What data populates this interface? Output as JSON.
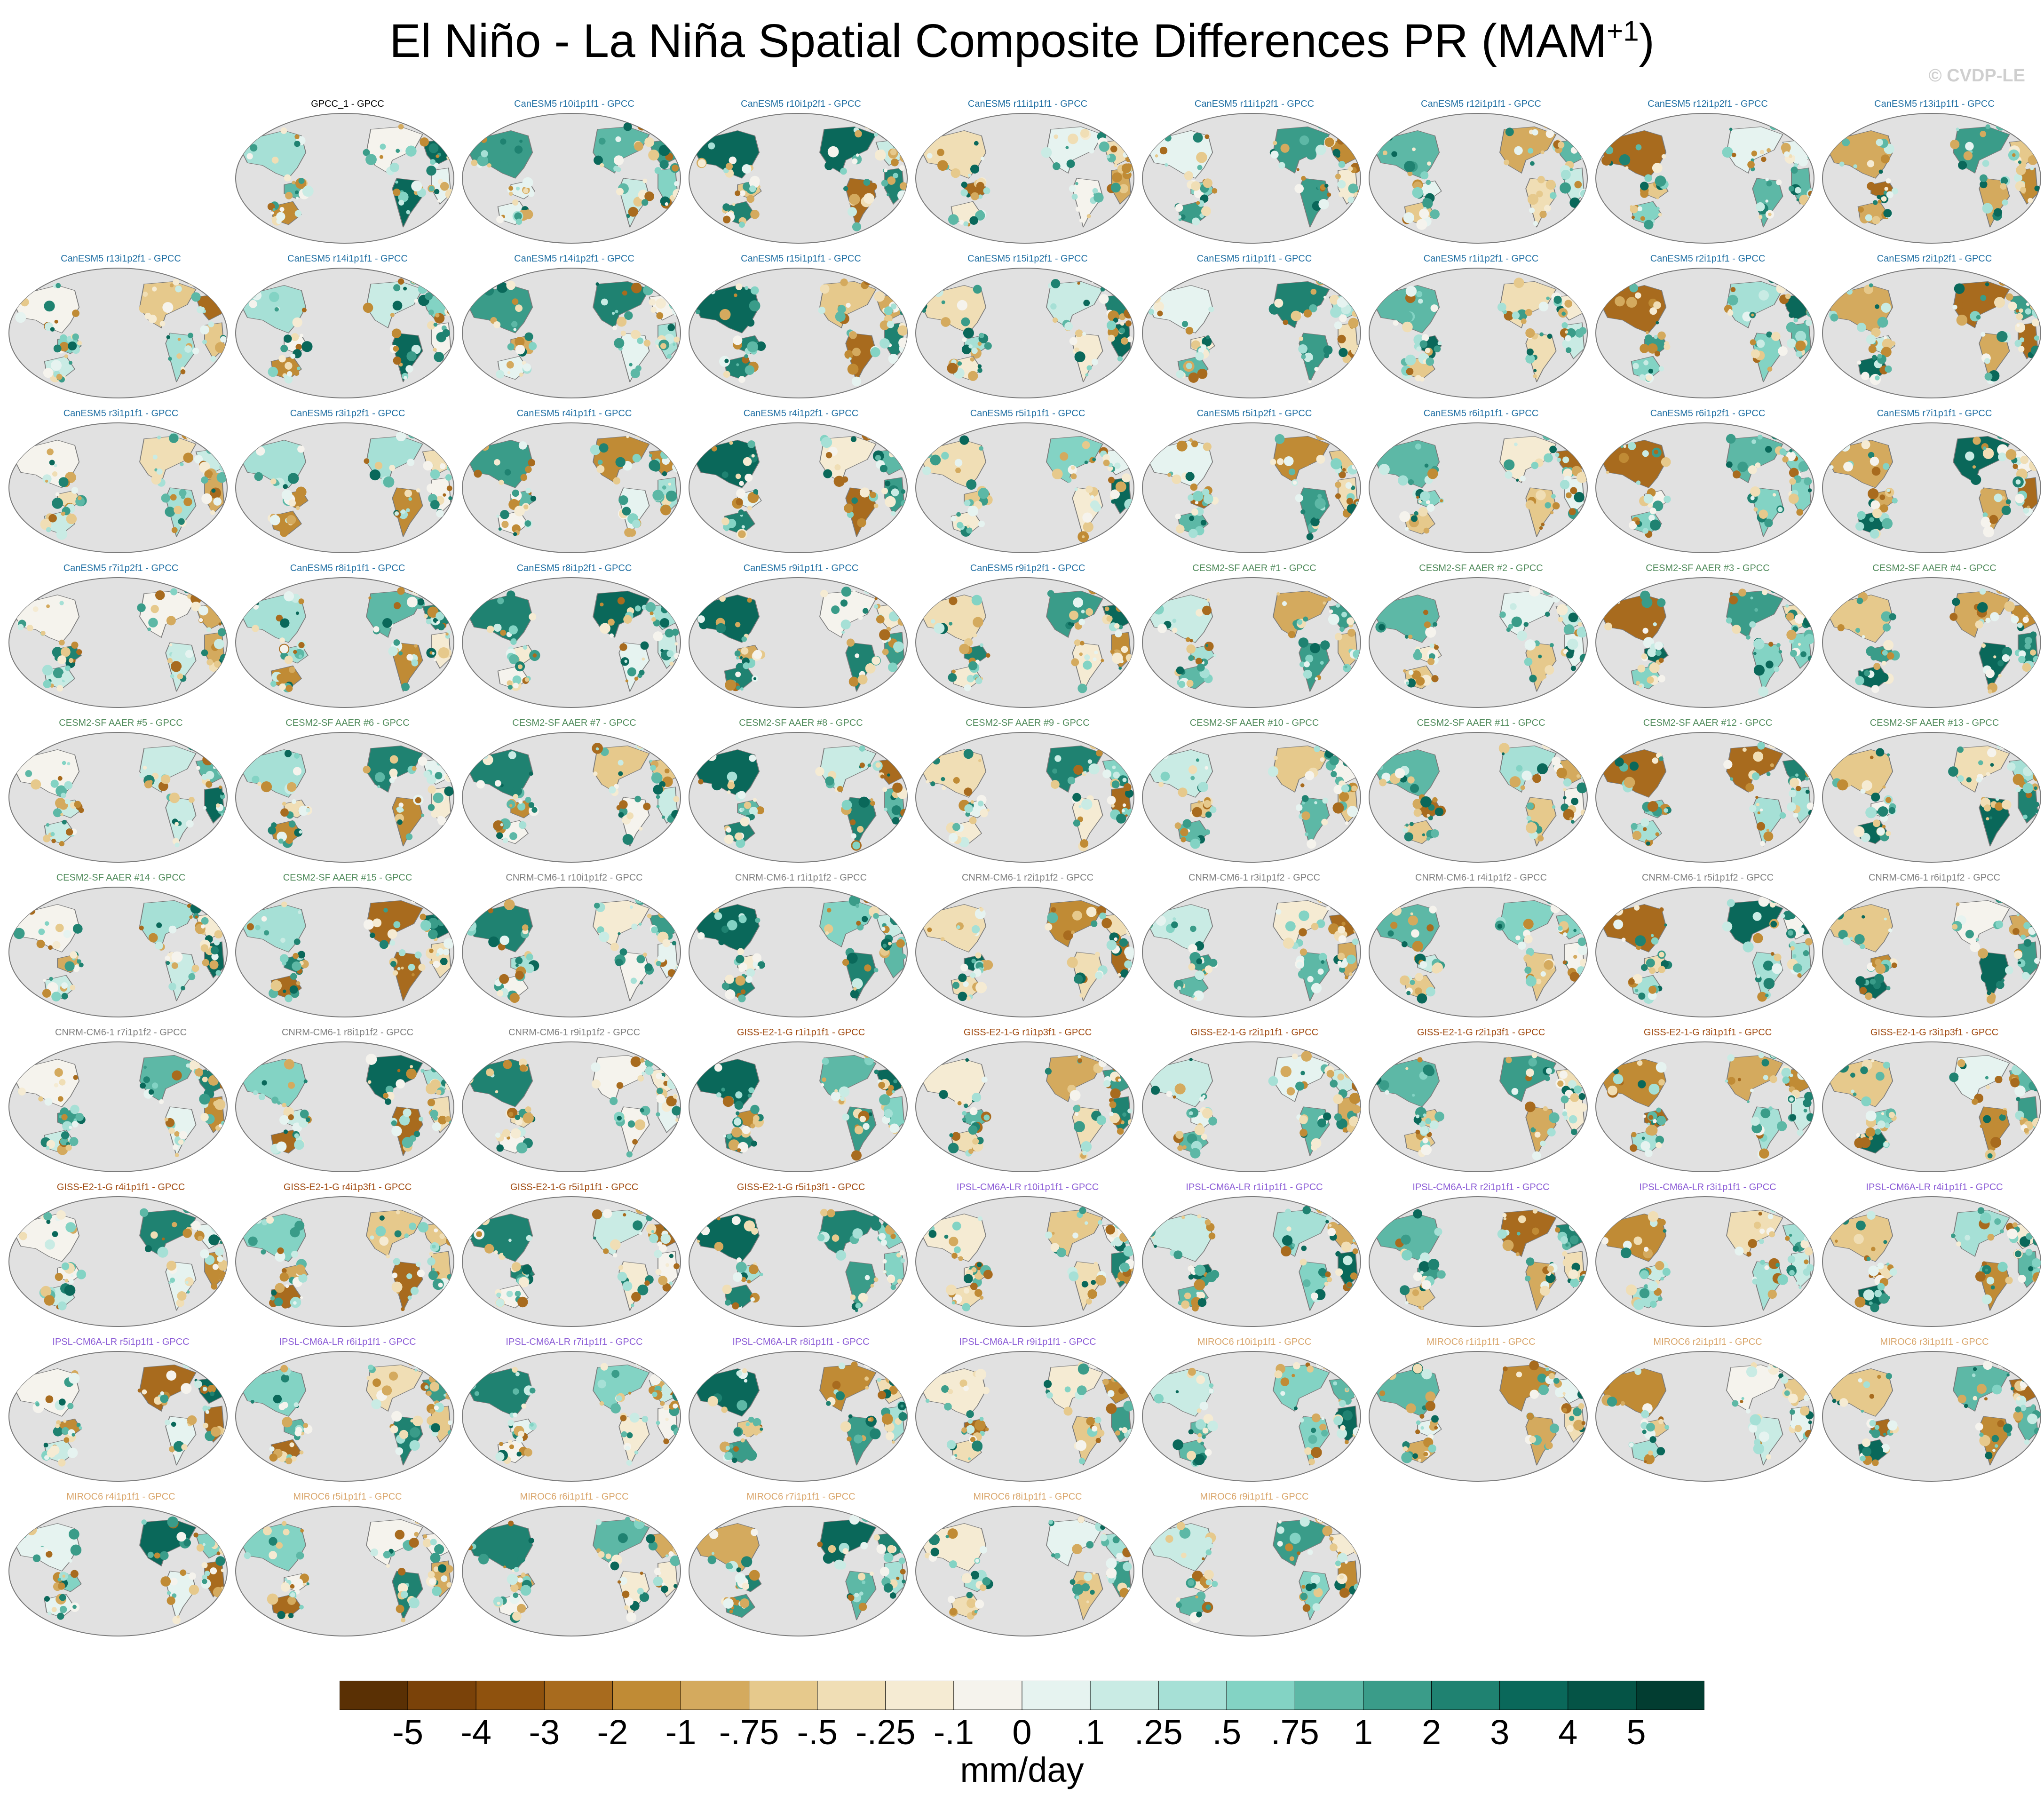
{
  "title": "El Niño - La Niña Spatial Composite Differences PR (MAM",
  "title_sup": "+1",
  "title_close": ")",
  "copyright": "© CVDP-LE",
  "units": "mm/day",
  "colors": {
    "ocean": "#e1e1e1",
    "coast": "#7a7a7a",
    "CanESM5": "#1f6fa3",
    "CESM2-SF AAER": "#4f8a5a",
    "CNRM-CM6-1": "#7f7f7f",
    "GISS-E2-1-G": "#a04a10",
    "IPSL-CM6A-LR": "#8b5bd6",
    "MIROC6": "#d9a56a",
    "obs": "#000000"
  },
  "colorbar": {
    "labels": [
      "-5",
      "-4",
      "-3",
      "-2",
      "-1",
      "-.75",
      "-.5",
      "-.25",
      "-.1",
      "0",
      ".1",
      ".25",
      ".5",
      ".75",
      "1",
      "2",
      "3",
      "4",
      "5"
    ],
    "colors": [
      "#5a3004",
      "#7a4209",
      "#8f520e",
      "#a86b1e",
      "#c08b35",
      "#d4aa5e",
      "#e6c98c",
      "#f0deb5",
      "#f5ebd3",
      "#f5f3ed",
      "#e6f3f0",
      "#c9ebe4",
      "#a6e0d6",
      "#83d3c4",
      "#5db8a6",
      "#3a9c89",
      "#1f8271",
      "#0a685a",
      "#055446",
      "#023d31"
    ]
  },
  "panels": [
    {
      "label": "GPCC_1 - GPCC",
      "model": "obs"
    },
    {
      "label": "CanESM5 r10i1p1f1 - GPCC",
      "model": "CanESM5"
    },
    {
      "label": "CanESM5 r10i1p2f1 - GPCC",
      "model": "CanESM5"
    },
    {
      "label": "CanESM5 r11i1p1f1 - GPCC",
      "model": "CanESM5"
    },
    {
      "label": "CanESM5 r11i1p2f1 - GPCC",
      "model": "CanESM5"
    },
    {
      "label": "CanESM5 r12i1p1f1 - GPCC",
      "model": "CanESM5"
    },
    {
      "label": "CanESM5 r12i1p2f1 - GPCC",
      "model": "CanESM5"
    },
    {
      "label": "CanESM5 r13i1p1f1 - GPCC",
      "model": "CanESM5"
    },
    {
      "label": "CanESM5 r13i1p2f1 - GPCC",
      "model": "CanESM5"
    },
    {
      "label": "CanESM5 r14i1p1f1 - GPCC",
      "model": "CanESM5"
    },
    {
      "label": "CanESM5 r14i1p2f1 - GPCC",
      "model": "CanESM5"
    },
    {
      "label": "CanESM5 r15i1p1f1 - GPCC",
      "model": "CanESM5"
    },
    {
      "label": "CanESM5 r15i1p2f1 - GPCC",
      "model": "CanESM5"
    },
    {
      "label": "CanESM5 r1i1p1f1 - GPCC",
      "model": "CanESM5"
    },
    {
      "label": "CanESM5 r1i1p2f1 - GPCC",
      "model": "CanESM5"
    },
    {
      "label": "CanESM5 r2i1p1f1 - GPCC",
      "model": "CanESM5"
    },
    {
      "label": "CanESM5 r2i1p2f1 - GPCC",
      "model": "CanESM5"
    },
    {
      "label": "CanESM5 r3i1p1f1 - GPCC",
      "model": "CanESM5"
    },
    {
      "label": "CanESM5 r3i1p2f1 - GPCC",
      "model": "CanESM5"
    },
    {
      "label": "CanESM5 r4i1p1f1 - GPCC",
      "model": "CanESM5"
    },
    {
      "label": "CanESM5 r4i1p2f1 - GPCC",
      "model": "CanESM5"
    },
    {
      "label": "CanESM5 r5i1p1f1 - GPCC",
      "model": "CanESM5"
    },
    {
      "label": "CanESM5 r5i1p2f1 - GPCC",
      "model": "CanESM5"
    },
    {
      "label": "CanESM5 r6i1p1f1 - GPCC",
      "model": "CanESM5"
    },
    {
      "label": "CanESM5 r6i1p2f1 - GPCC",
      "model": "CanESM5"
    },
    {
      "label": "CanESM5 r7i1p1f1 - GPCC",
      "model": "CanESM5"
    },
    {
      "label": "CanESM5 r7i1p2f1 - GPCC",
      "model": "CanESM5"
    },
    {
      "label": "CanESM5 r8i1p1f1 - GPCC",
      "model": "CanESM5"
    },
    {
      "label": "CanESM5 r8i1p2f1 - GPCC",
      "model": "CanESM5"
    },
    {
      "label": "CanESM5 r9i1p1f1 - GPCC",
      "model": "CanESM5"
    },
    {
      "label": "CanESM5 r9i1p2f1 - GPCC",
      "model": "CanESM5"
    },
    {
      "label": "CESM2-SF AAER #1 - GPCC",
      "model": "CESM2-SF AAER"
    },
    {
      "label": "CESM2-SF AAER #2 - GPCC",
      "model": "CESM2-SF AAER"
    },
    {
      "label": "CESM2-SF AAER #3 - GPCC",
      "model": "CESM2-SF AAER"
    },
    {
      "label": "CESM2-SF AAER #4 - GPCC",
      "model": "CESM2-SF AAER"
    },
    {
      "label": "CESM2-SF AAER #5 - GPCC",
      "model": "CESM2-SF AAER"
    },
    {
      "label": "CESM2-SF AAER #6 - GPCC",
      "model": "CESM2-SF AAER"
    },
    {
      "label": "CESM2-SF AAER #7 - GPCC",
      "model": "CESM2-SF AAER"
    },
    {
      "label": "CESM2-SF AAER #8 - GPCC",
      "model": "CESM2-SF AAER"
    },
    {
      "label": "CESM2-SF AAER #9 - GPCC",
      "model": "CESM2-SF AAER"
    },
    {
      "label": "CESM2-SF AAER #10 - GPCC",
      "model": "CESM2-SF AAER"
    },
    {
      "label": "CESM2-SF AAER #11 - GPCC",
      "model": "CESM2-SF AAER"
    },
    {
      "label": "CESM2-SF AAER #12 - GPCC",
      "model": "CESM2-SF AAER"
    },
    {
      "label": "CESM2-SF AAER #13 - GPCC",
      "model": "CESM2-SF AAER"
    },
    {
      "label": "CESM2-SF AAER #14 - GPCC",
      "model": "CESM2-SF AAER"
    },
    {
      "label": "CESM2-SF AAER #15 - GPCC",
      "model": "CESM2-SF AAER"
    },
    {
      "label": "CNRM-CM6-1 r10i1p1f2 - GPCC",
      "model": "CNRM-CM6-1"
    },
    {
      "label": "CNRM-CM6-1 r1i1p1f2 - GPCC",
      "model": "CNRM-CM6-1"
    },
    {
      "label": "CNRM-CM6-1 r2i1p1f2 - GPCC",
      "model": "CNRM-CM6-1"
    },
    {
      "label": "CNRM-CM6-1 r3i1p1f2 - GPCC",
      "model": "CNRM-CM6-1"
    },
    {
      "label": "CNRM-CM6-1 r4i1p1f2 - GPCC",
      "model": "CNRM-CM6-1"
    },
    {
      "label": "CNRM-CM6-1 r5i1p1f2 - GPCC",
      "model": "CNRM-CM6-1"
    },
    {
      "label": "CNRM-CM6-1 r6i1p1f2 - GPCC",
      "model": "CNRM-CM6-1"
    },
    {
      "label": "CNRM-CM6-1 r7i1p1f2 - GPCC",
      "model": "CNRM-CM6-1"
    },
    {
      "label": "CNRM-CM6-1 r8i1p1f2 - GPCC",
      "model": "CNRM-CM6-1"
    },
    {
      "label": "CNRM-CM6-1 r9i1p1f2 - GPCC",
      "model": "CNRM-CM6-1"
    },
    {
      "label": "GISS-E2-1-G r1i1p1f1 - GPCC",
      "model": "GISS-E2-1-G"
    },
    {
      "label": "GISS-E2-1-G r1i1p3f1 - GPCC",
      "model": "GISS-E2-1-G"
    },
    {
      "label": "GISS-E2-1-G r2i1p1f1 - GPCC",
      "model": "GISS-E2-1-G"
    },
    {
      "label": "GISS-E2-1-G r2i1p3f1 - GPCC",
      "model": "GISS-E2-1-G"
    },
    {
      "label": "GISS-E2-1-G r3i1p1f1 - GPCC",
      "model": "GISS-E2-1-G"
    },
    {
      "label": "GISS-E2-1-G r3i1p3f1 - GPCC",
      "model": "GISS-E2-1-G"
    },
    {
      "label": "GISS-E2-1-G r4i1p1f1 - GPCC",
      "model": "GISS-E2-1-G"
    },
    {
      "label": "GISS-E2-1-G r4i1p3f1 - GPCC",
      "model": "GISS-E2-1-G"
    },
    {
      "label": "GISS-E2-1-G r5i1p1f1 - GPCC",
      "model": "GISS-E2-1-G"
    },
    {
      "label": "GISS-E2-1-G r5i1p3f1 - GPCC",
      "model": "GISS-E2-1-G"
    },
    {
      "label": "IPSL-CM6A-LR r10i1p1f1 - GPCC",
      "model": "IPSL-CM6A-LR"
    },
    {
      "label": "IPSL-CM6A-LR r1i1p1f1 - GPCC",
      "model": "IPSL-CM6A-LR"
    },
    {
      "label": "IPSL-CM6A-LR r2i1p1f1 - GPCC",
      "model": "IPSL-CM6A-LR"
    },
    {
      "label": "IPSL-CM6A-LR r3i1p1f1 - GPCC",
      "model": "IPSL-CM6A-LR"
    },
    {
      "label": "IPSL-CM6A-LR r4i1p1f1 - GPCC",
      "model": "IPSL-CM6A-LR"
    },
    {
      "label": "IPSL-CM6A-LR r5i1p1f1 - GPCC",
      "model": "IPSL-CM6A-LR"
    },
    {
      "label": "IPSL-CM6A-LR r6i1p1f1 - GPCC",
      "model": "IPSL-CM6A-LR"
    },
    {
      "label": "IPSL-CM6A-LR r7i1p1f1 - GPCC",
      "model": "IPSL-CM6A-LR"
    },
    {
      "label": "IPSL-CM6A-LR r8i1p1f1 - GPCC",
      "model": "IPSL-CM6A-LR"
    },
    {
      "label": "IPSL-CM6A-LR r9i1p1f1 - GPCC",
      "model": "IPSL-CM6A-LR"
    },
    {
      "label": "MIROC6 r10i1p1f1 - GPCC",
      "model": "MIROC6"
    },
    {
      "label": "MIROC6 r1i1p1f1 - GPCC",
      "model": "MIROC6"
    },
    {
      "label": "MIROC6 r2i1p1f1 - GPCC",
      "model": "MIROC6"
    },
    {
      "label": "MIROC6 r3i1p1f1 - GPCC",
      "model": "MIROC6"
    },
    {
      "label": "MIROC6 r4i1p1f1 - GPCC",
      "model": "MIROC6"
    },
    {
      "label": "MIROC6 r5i1p1f1 - GPCC",
      "model": "MIROC6"
    },
    {
      "label": "MIROC6 r6i1p1f1 - GPCC",
      "model": "MIROC6"
    },
    {
      "label": "MIROC6 r7i1p1f1 - GPCC",
      "model": "MIROC6"
    },
    {
      "label": "MIROC6 r8i1p1f1 - GPCC",
      "model": "MIROC6"
    },
    {
      "label": "MIROC6 r9i1p1f1 - GPCC",
      "model": "MIROC6"
    }
  ]
}
